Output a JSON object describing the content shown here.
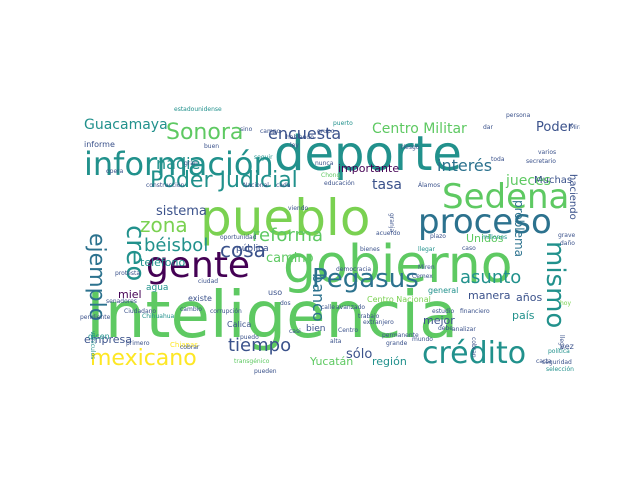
{
  "colors": {
    "background": "#ffffff",
    "palette": [
      "#440154",
      "#3b528b",
      "#21918c",
      "#5ec962",
      "#fde725",
      "#2c728e",
      "#7ad151",
      "#472d7b"
    ]
  },
  "words": [
    {
      "text": "Inteligencia",
      "color": "#5ec962"
    },
    {
      "text": "deporte",
      "color": "#21918c"
    },
    {
      "text": "pueblo",
      "color": "#7ad151"
    },
    {
      "text": "gobierno",
      "color": "#5ec962"
    },
    {
      "text": "información",
      "color": "#21918c"
    },
    {
      "text": "Sedena",
      "color": "#5ec962"
    },
    {
      "text": "proceso",
      "color": "#2c728e"
    },
    {
      "text": "gente",
      "color": "#440154"
    },
    {
      "text": "Pegasus",
      "color": "#2c728e"
    },
    {
      "text": "crédito",
      "color": "#21918c"
    },
    {
      "text": "mexicano",
      "color": "#fde725"
    },
    {
      "text": "Sonora",
      "color": "#5ec962"
    },
    {
      "text": "Poder Judicial",
      "color": "#21918c"
    },
    {
      "text": "creo",
      "color": "#21918c"
    },
    {
      "text": "ejemplo",
      "color": "#2c728e"
    },
    {
      "text": "mismo",
      "color": "#21918c"
    },
    {
      "text": "zona",
      "color": "#7ad151"
    },
    {
      "text": "béisbol",
      "color": "#21918c"
    },
    {
      "text": "cosa",
      "color": "#3b528b"
    },
    {
      "text": "reforma",
      "color": "#5ec962"
    },
    {
      "text": "tiempo",
      "color": "#3b528b"
    },
    {
      "text": "banco",
      "color": "#2c728e"
    },
    {
      "text": "asunto",
      "color": "#21918c"
    },
    {
      "text": "interés",
      "color": "#2c728e"
    },
    {
      "text": "encuesta",
      "color": "#3b528b"
    },
    {
      "text": "Centro Militar",
      "color": "#5ec962"
    },
    {
      "text": "Guacamaya",
      "color": "#21918c"
    },
    {
      "text": "Poder",
      "color": "#3b528b"
    },
    {
      "text": "nadie",
      "color": "#21918c"
    },
    {
      "text": "tasa",
      "color": "#3b528b"
    },
    {
      "text": "jueces",
      "color": "#5ec962"
    },
    {
      "text": "problema",
      "color": "#2c728e"
    },
    {
      "text": "sistema",
      "color": "#3b528b"
    },
    {
      "text": "camino",
      "color": "#5ec962"
    },
    {
      "text": "importante",
      "color": "#440154"
    },
    {
      "text": "haciendo",
      "color": "#3b528b"
    },
    {
      "text": "Unidos",
      "color": "#5ec962"
    },
    {
      "text": "teléfono",
      "color": "#21918c"
    },
    {
      "text": "sólo",
      "color": "#3b528b"
    },
    {
      "text": "Yucatán",
      "color": "#5ec962"
    },
    {
      "text": "región",
      "color": "#21918c"
    },
    {
      "text": "mejor",
      "color": "#3b528b"
    },
    {
      "text": "país",
      "color": "#21918c"
    },
    {
      "text": "manera",
      "color": "#3b528b"
    },
    {
      "text": "años",
      "color": "#3b528b"
    },
    {
      "text": "miel",
      "color": "#440154"
    },
    {
      "text": "empresa",
      "color": "#3b528b"
    },
    {
      "text": "Muchas",
      "color": "#3b528b"
    },
    {
      "text": "pública",
      "color": "#3b528b"
    },
    {
      "text": "agua",
      "color": "#21918c"
    },
    {
      "text": "bien",
      "color": "#3b528b"
    },
    {
      "text": "Calica",
      "color": "#3b528b"
    },
    {
      "text": "existe",
      "color": "#3b528b"
    },
    {
      "text": "Centro Nacional",
      "color": "#7ad151"
    },
    {
      "text": "general",
      "color": "#21918c"
    },
    {
      "text": "informe",
      "color": "#3b528b"
    },
    {
      "text": "dicen",
      "color": "#21918c"
    },
    {
      "text": "Chihuahua",
      "color": "#21918c"
    },
    {
      "text": "Chiapas",
      "color": "#fde725"
    },
    {
      "text": "millones",
      "color": "#21918c"
    },
    {
      "text": "caso",
      "color": "#3b528b"
    },
    {
      "text": "vehículos",
      "color": "#21918c"
    },
    {
      "text": "trabajo",
      "color": "#3b528b"
    },
    {
      "text": "bienes",
      "color": "#3b528b"
    },
    {
      "text": "transgénico",
      "color": "#5ec962"
    },
    {
      "text": "estadounidense",
      "color": "#21918c"
    },
    {
      "text": "Chong",
      "color": "#5ec962"
    },
    {
      "text": "educación",
      "color": "#3b528b"
    },
    {
      "text": "construcción",
      "color": "#3b528b"
    },
    {
      "text": "oportunidad",
      "color": "#3b528b"
    },
    {
      "text": "Nacional",
      "color": "#3b528b"
    },
    {
      "text": "cada",
      "color": "#3b528b"
    },
    {
      "text": "grupo",
      "color": "#3b528b"
    },
    {
      "text": "puerto",
      "color": "#21918c"
    },
    {
      "text": "seguir",
      "color": "#21918c"
    },
    {
      "text": "riesgo",
      "color": "#3b528b"
    },
    {
      "text": "opera",
      "color": "#3b528b"
    },
    {
      "text": "Álamos",
      "color": "#3b528b"
    },
    {
      "text": "nunca",
      "color": "#3b528b"
    },
    {
      "text": "acuerdo",
      "color": "#3b528b"
    },
    {
      "text": "llegar",
      "color": "#21918c"
    },
    {
      "text": "plazo",
      "color": "#3b528b"
    },
    {
      "text": "granja",
      "color": "#3b528b"
    },
    {
      "text": "Miren",
      "color": "#3b528b"
    },
    {
      "text": "democracia",
      "color": "#3b528b"
    },
    {
      "text": "corrupción",
      "color": "#3b528b"
    },
    {
      "text": "calle",
      "color": "#3b528b"
    },
    {
      "text": "avanzado",
      "color": "#3b528b"
    },
    {
      "text": "estudio",
      "color": "#3b528b"
    },
    {
      "text": "financiero",
      "color": "#3b528b"
    },
    {
      "text": "debe",
      "color": "#3b528b"
    },
    {
      "text": "grande",
      "color": "#3b528b"
    },
    {
      "text": "alta",
      "color": "#3b528b"
    },
    {
      "text": "casi",
      "color": "#3b528b"
    },
    {
      "text": "Centro",
      "color": "#3b528b"
    },
    {
      "text": "permanente",
      "color": "#3b528b"
    },
    {
      "text": "analizar",
      "color": "#3b528b"
    },
    {
      "text": "cobran",
      "color": "#3b528b"
    },
    {
      "text": "seguridad",
      "color": "#3b528b"
    },
    {
      "text": "política",
      "color": "#21918c"
    },
    {
      "text": "selección",
      "color": "#21918c"
    },
    {
      "text": "primero",
      "color": "#3b528b"
    },
    {
      "text": "cambio",
      "color": "#3b528b"
    },
    {
      "text": "pendiente",
      "color": "#3b528b"
    },
    {
      "text": "Ciudadano",
      "color": "#3b528b"
    },
    {
      "text": "protesta",
      "color": "#3b528b"
    },
    {
      "text": "senadores",
      "color": "#3b528b"
    },
    {
      "text": "secretario",
      "color": "#3b528b"
    },
    {
      "text": "toda",
      "color": "#3b528b"
    },
    {
      "text": "varios",
      "color": "#3b528b"
    },
    {
      "text": "vez",
      "color": "#3b528b"
    },
    {
      "text": "grave",
      "color": "#3b528b"
    },
    {
      "text": "daño",
      "color": "#3b528b"
    },
    {
      "text": "hoy",
      "color": "#7ad151"
    },
    {
      "text": "llegó",
      "color": "#3b528b"
    },
    {
      "text": "carta",
      "color": "#3b528b"
    },
    {
      "text": "buen",
      "color": "#3b528b"
    },
    {
      "text": "gran",
      "color": "#3b528b"
    },
    {
      "text": "viendo",
      "color": "#3b528b"
    },
    {
      "text": "pueden",
      "color": "#3b528b"
    },
    {
      "text": "hablando",
      "color": "#3b528b"
    },
    {
      "text": "campo",
      "color": "#3b528b"
    },
    {
      "text": "sino",
      "color": "#3b528b"
    },
    {
      "text": "dar",
      "color": "#3b528b"
    },
    {
      "text": "Mira",
      "color": "#3b528b"
    },
    {
      "text": "persona",
      "color": "#3b528b"
    },
    {
      "text": "ley",
      "color": "#3b528b"
    },
    {
      "text": "uso",
      "color": "#3b528b"
    },
    {
      "text": "dos",
      "color": "#3b528b"
    },
    {
      "text": "mundo",
      "color": "#3b528b"
    },
    {
      "text": "puedo",
      "color": "#3b528b"
    },
    {
      "text": "ciudad",
      "color": "#3b528b"
    },
    {
      "text": "cobrar",
      "color": "#3b528b"
    },
    {
      "text": "extranjero",
      "color": "#3b528b"
    },
    {
      "text": "Cemex",
      "color": "#3b528b"
    }
  ]
}
